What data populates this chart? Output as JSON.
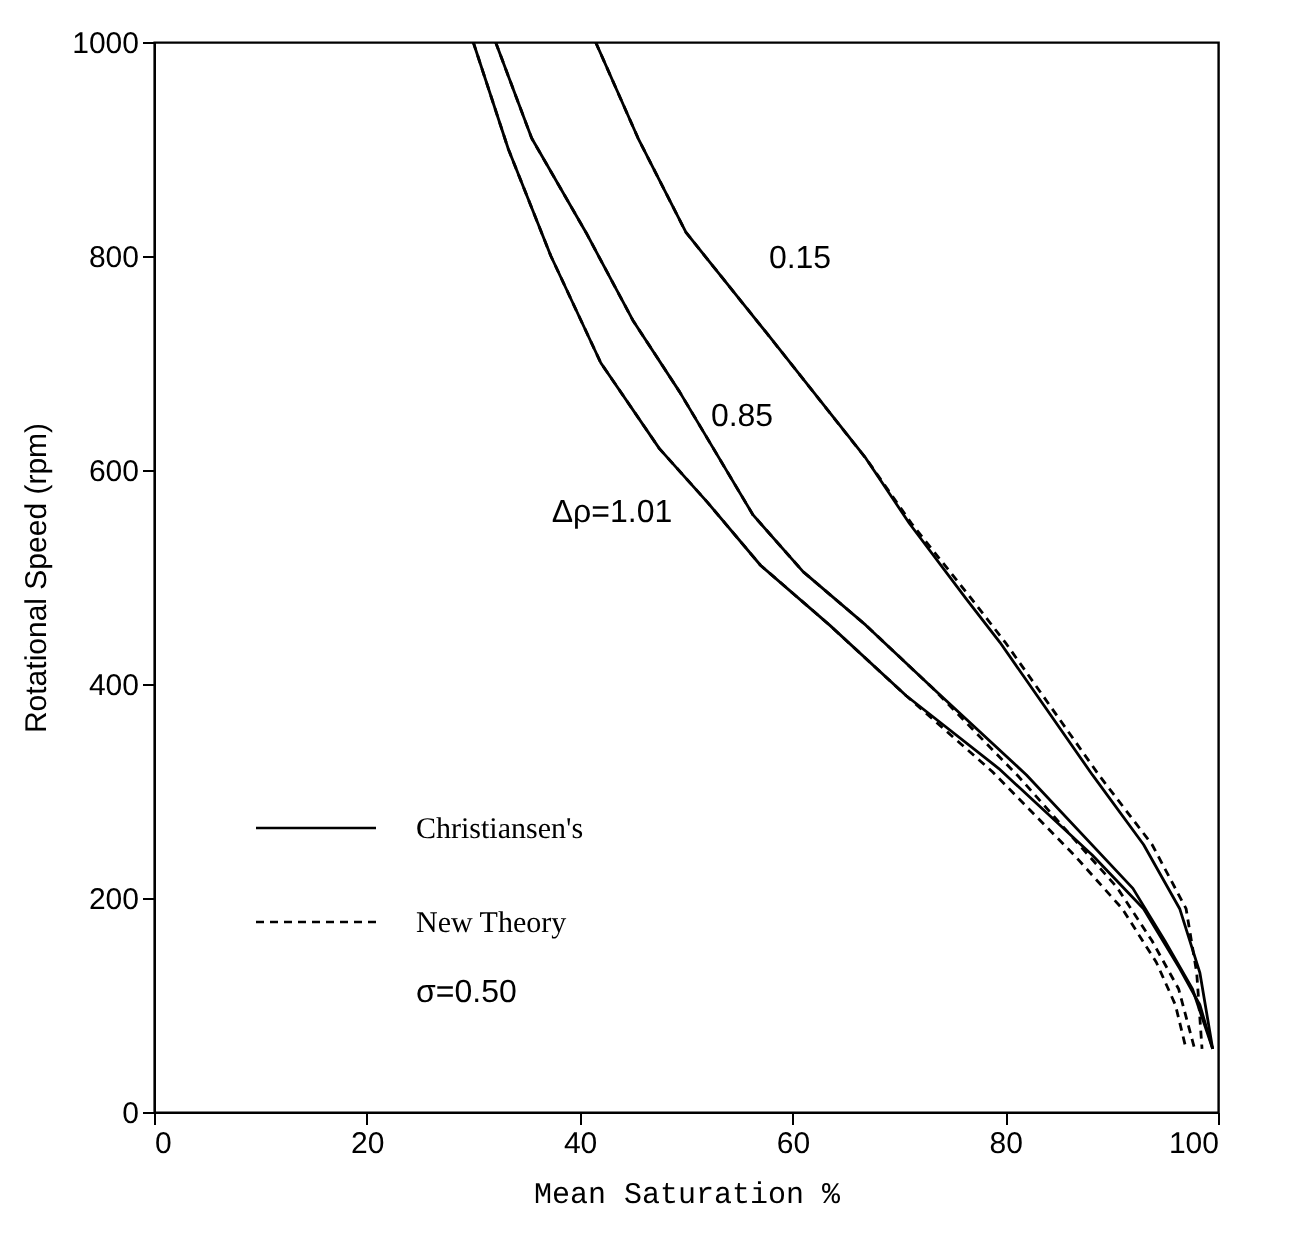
{
  "chart_data": {
    "type": "line",
    "xlabel": "Mean Saturation  %",
    "ylabel": "Rotational Speed (rpm)",
    "xlim": [
      0,
      100
    ],
    "ylim": [
      0,
      1000
    ],
    "xticks": [
      0,
      20,
      40,
      60,
      80,
      100
    ],
    "yticks": [
      0,
      200,
      400,
      600,
      800,
      {
        "value": 1000,
        "label": "1000"
      }
    ],
    "grid": false,
    "legend": "bottom left",
    "series": [
      {
        "name": "Christiansen's",
        "color": "#000000",
        "line_style": "solid",
        "x": [
          30,
          33.3,
          37.3,
          42,
          47.5,
          52,
          57,
          63.5,
          70.7,
          79.4,
          88.2,
          93,
          96.4,
          98.3,
          99.5
        ],
        "values": [
          1000,
          900,
          800,
          700,
          620,
          570,
          511,
          455,
          389,
          321,
          240,
          190,
          134,
          100,
          59
        ]
      },
      {
        "name": "New Theory",
        "color": "#000000",
        "line_style": "dashed",
        "x": [
          30,
          33.3,
          37.3,
          42,
          47.5,
          52,
          57,
          63.5,
          70.7,
          78.8,
          86.5,
          91,
          94.2,
          96,
          97
        ],
        "values": [
          1000,
          900,
          800,
          700,
          620,
          570,
          511,
          455,
          389,
          318,
          240,
          190,
          140,
          100,
          59
        ]
      },
      {
        "color": "#000000",
        "line_style": "solid",
        "x": [
          32.1,
          35.5,
          40.6,
          45,
          49.4,
          56.3,
          61,
          66.9,
          73.2,
          82,
          92,
          95,
          97.6,
          99.5
        ],
        "values": [
          1000,
          910,
          822,
          740,
          673,
          558,
          505,
          455,
          396,
          315,
          209,
          160,
          115,
          59
        ]
      },
      {
        "color": "#000000",
        "line_style": "dashed",
        "x": [
          32.1,
          35.5,
          40.6,
          45,
          49.4,
          56.3,
          61,
          66.9,
          73.2,
          81.3,
          90.5,
          93.8,
          96.3,
          97.8
        ],
        "values": [
          1000,
          910,
          822,
          740,
          673,
          558,
          505,
          455,
          396,
          313,
          210,
          160,
          115,
          59
        ]
      },
      {
        "color": "#000000",
        "line_style": "solid",
        "x": [
          41.5,
          45.5,
          50,
          57.5,
          66.9,
          71,
          76.3,
          79.5,
          88.2,
          93,
          96.4,
          98.3,
          99.5
        ],
        "values": [
          1000,
          910,
          822,
          729,
          611,
          550,
          480,
          439,
          315,
          250,
          190,
          130,
          59
        ]
      },
      {
        "color": "#000000",
        "line_style": "dashed",
        "x": [
          41.5,
          45.5,
          50,
          57.5,
          66.9,
          71.2,
          76.8,
          80,
          88.8,
          93.8,
          97,
          98,
          98.5
        ],
        "values": [
          1000,
          910,
          822,
          729,
          611,
          550,
          480,
          439,
          315,
          250,
          190,
          130,
          59
        ]
      }
    ],
    "annotations": [
      "0.15",
      "0.85",
      "Δρ=1.01",
      "σ=0.50"
    ]
  }
}
